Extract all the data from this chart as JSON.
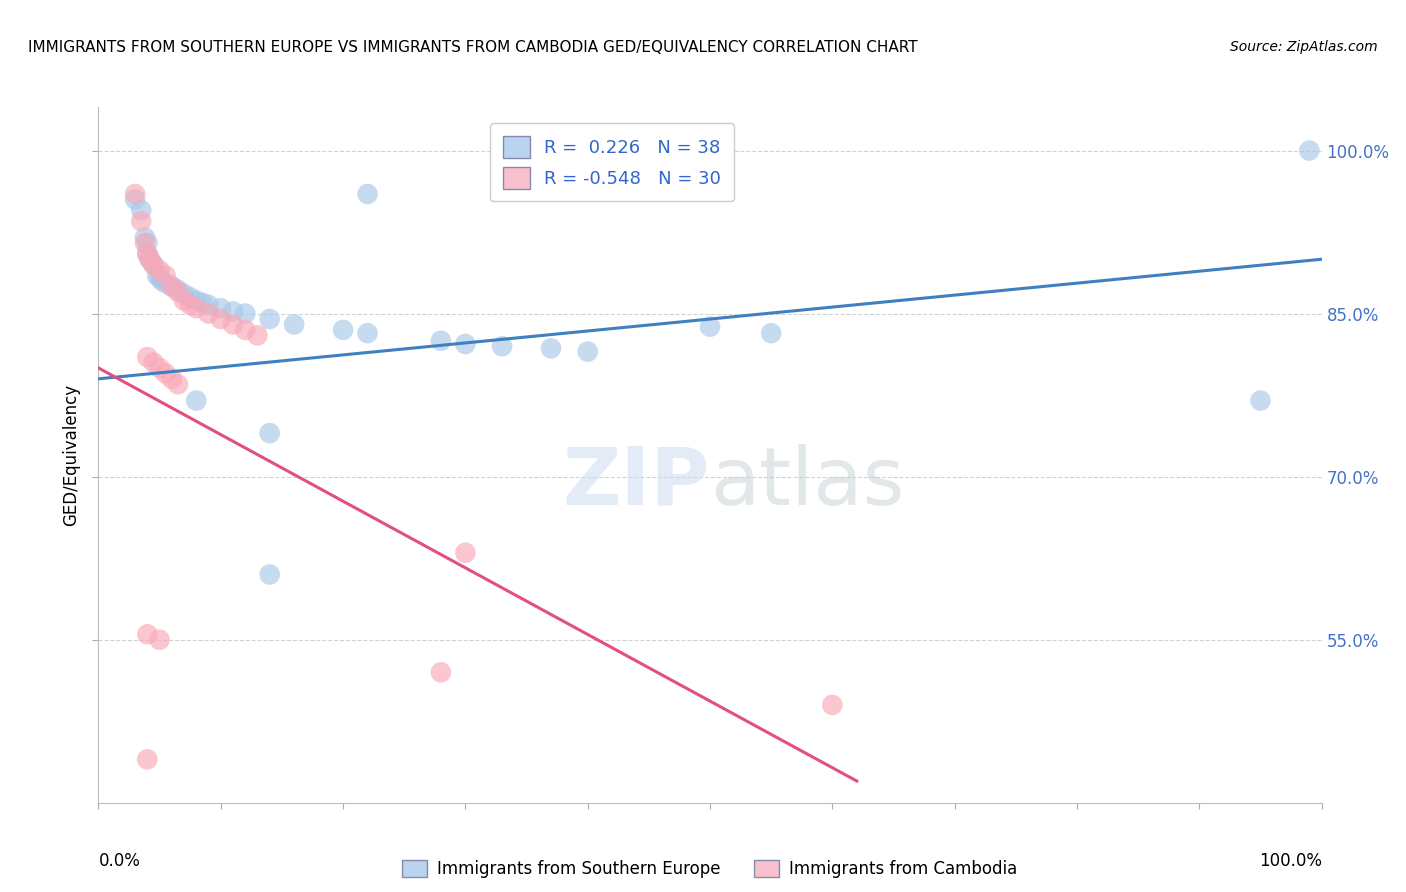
{
  "title": "IMMIGRANTS FROM SOUTHERN EUROPE VS IMMIGRANTS FROM CAMBODIA GED/EQUIVALENCY CORRELATION CHART",
  "source": "Source: ZipAtlas.com",
  "ylabel": "GED/Equivalency",
  "legend_labels": [
    "Immigrants from Southern Europe",
    "Immigrants from Cambodia"
  ],
  "blue_R": 0.226,
  "blue_N": 38,
  "pink_R": -0.548,
  "pink_N": 30,
  "blue_color": "#a8c8e8",
  "pink_color": "#f8a8b8",
  "blue_line_color": "#4080c0",
  "pink_line_color": "#e05080",
  "xlim": [
    0.0,
    1.0
  ],
  "ylim": [
    0.4,
    1.04
  ],
  "yticks": [
    0.55,
    0.7,
    0.85,
    1.0
  ],
  "ytick_labels": [
    "55.0%",
    "70.0%",
    "85.0%",
    "100.0%"
  ],
  "blue_dots": [
    [
      0.03,
      0.955
    ],
    [
      0.035,
      0.945
    ],
    [
      0.038,
      0.92
    ],
    [
      0.04,
      0.915
    ],
    [
      0.04,
      0.905
    ],
    [
      0.042,
      0.9
    ],
    [
      0.045,
      0.895
    ],
    [
      0.048,
      0.885
    ],
    [
      0.05,
      0.883
    ],
    [
      0.052,
      0.88
    ],
    [
      0.055,
      0.878
    ],
    [
      0.06,
      0.875
    ],
    [
      0.065,
      0.872
    ],
    [
      0.07,
      0.868
    ],
    [
      0.075,
      0.865
    ],
    [
      0.08,
      0.862
    ],
    [
      0.085,
      0.86
    ],
    [
      0.09,
      0.858
    ],
    [
      0.1,
      0.855
    ],
    [
      0.11,
      0.852
    ],
    [
      0.12,
      0.85
    ],
    [
      0.14,
      0.845
    ],
    [
      0.16,
      0.84
    ],
    [
      0.2,
      0.835
    ],
    [
      0.22,
      0.832
    ],
    [
      0.28,
      0.825
    ],
    [
      0.3,
      0.822
    ],
    [
      0.33,
      0.82
    ],
    [
      0.37,
      0.818
    ],
    [
      0.4,
      0.815
    ],
    [
      0.5,
      0.838
    ],
    [
      0.55,
      0.832
    ],
    [
      0.08,
      0.77
    ],
    [
      0.14,
      0.74
    ],
    [
      0.14,
      0.61
    ],
    [
      0.22,
      0.96
    ],
    [
      0.95,
      0.77
    ],
    [
      0.99,
      1.0
    ]
  ],
  "pink_dots": [
    [
      0.03,
      0.96
    ],
    [
      0.035,
      0.935
    ],
    [
      0.038,
      0.915
    ],
    [
      0.04,
      0.905
    ],
    [
      0.042,
      0.9
    ],
    [
      0.045,
      0.895
    ],
    [
      0.05,
      0.89
    ],
    [
      0.055,
      0.885
    ],
    [
      0.06,
      0.875
    ],
    [
      0.065,
      0.87
    ],
    [
      0.07,
      0.862
    ],
    [
      0.075,
      0.858
    ],
    [
      0.08,
      0.855
    ],
    [
      0.09,
      0.85
    ],
    [
      0.1,
      0.845
    ],
    [
      0.11,
      0.84
    ],
    [
      0.12,
      0.835
    ],
    [
      0.13,
      0.83
    ],
    [
      0.04,
      0.81
    ],
    [
      0.045,
      0.805
    ],
    [
      0.05,
      0.8
    ],
    [
      0.055,
      0.795
    ],
    [
      0.06,
      0.79
    ],
    [
      0.065,
      0.785
    ],
    [
      0.04,
      0.555
    ],
    [
      0.05,
      0.55
    ],
    [
      0.28,
      0.52
    ],
    [
      0.3,
      0.63
    ],
    [
      0.6,
      0.49
    ],
    [
      0.04,
      0.44
    ]
  ],
  "blue_line_x": [
    0.0,
    1.0
  ],
  "blue_line_y": [
    0.79,
    0.9
  ],
  "pink_line_x": [
    0.0,
    0.62
  ],
  "pink_line_y": [
    0.8,
    0.42
  ]
}
